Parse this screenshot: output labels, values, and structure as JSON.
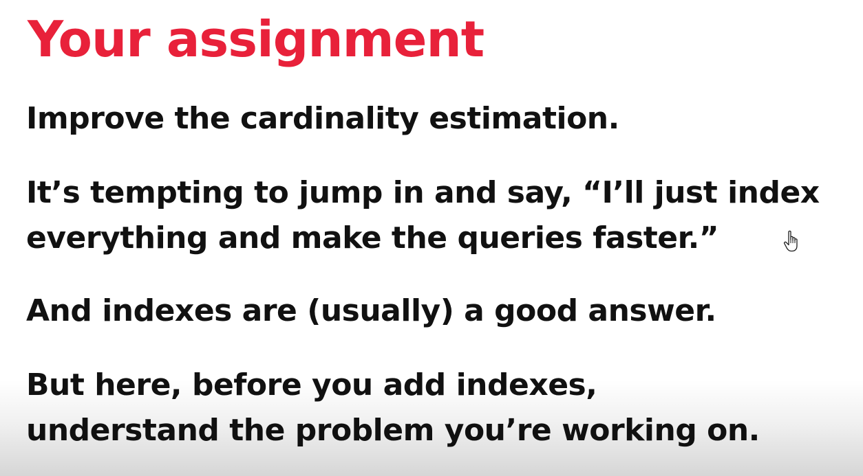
{
  "colors": {
    "title": "#e8213a",
    "text": "#111111",
    "background": "#ffffff"
  },
  "slide": {
    "title": "Your assignment",
    "paragraphs": [
      {
        "lines": [
          "Improve the cardinality estimation."
        ]
      },
      {
        "lines": [
          "It’s tempting to jump in and say, “I’ll just index",
          "everything and make the queries faster.”"
        ]
      },
      {
        "lines": [
          "And indexes are (usually) a good answer."
        ]
      },
      {
        "lines": [
          "But here, before you add indexes,",
          "understand the problem you’re working on."
        ]
      }
    ]
  },
  "cursor": {
    "icon": "hand-pointer-icon"
  }
}
